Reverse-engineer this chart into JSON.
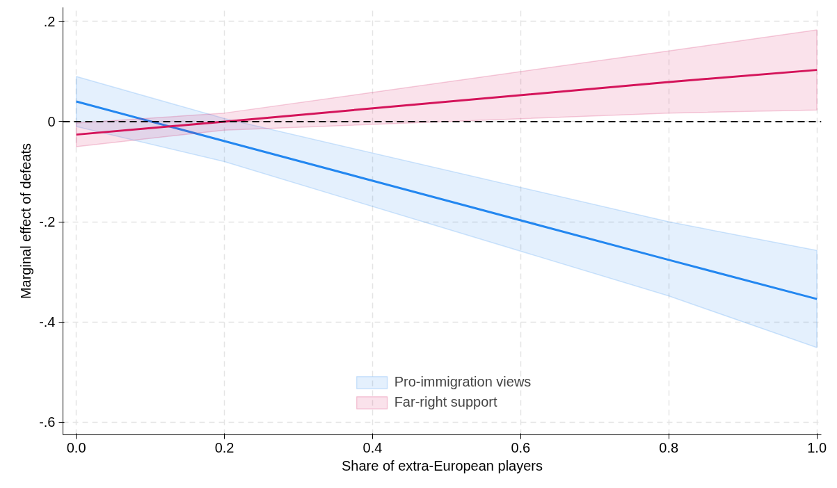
{
  "chart_data": {
    "type": "line",
    "xlabel": "Share of extra-European players",
    "ylabel": "Marginal effect of defeats",
    "x": [
      0,
      0.2,
      0.8,
      1.0
    ],
    "series": [
      {
        "name": "Pro-immigration views",
        "color": "#2387f0",
        "values": [
          0.04,
          -0.039,
          -0.276,
          -0.354
        ],
        "lower": [
          -0.01,
          -0.08,
          -0.348,
          -0.451
        ],
        "upper": [
          0.09,
          0.006,
          -0.2,
          -0.257
        ]
      },
      {
        "name": "Far-right support",
        "color": "#d4145a",
        "values": [
          -0.026,
          0.0,
          0.079,
          0.103
        ],
        "lower": [
          -0.05,
          -0.017,
          0.017,
          0.023
        ],
        "upper": [
          -0.003,
          0.017,
          0.141,
          0.183
        ]
      }
    ],
    "xlim": [
      -0.018,
      1.006
    ],
    "ylim": [
      -0.625,
      0.228
    ],
    "xticks": [
      {
        "value": 0,
        "label": "0.0"
      },
      {
        "value": 0.2,
        "label": "0.2"
      },
      {
        "value": 0.4,
        "label": "0.4"
      },
      {
        "value": 0.6,
        "label": "0.6"
      },
      {
        "value": 0.8,
        "label": "0.8"
      },
      {
        "value": 1.0,
        "label": "1.0"
      }
    ],
    "yticks": [
      {
        "value": 0.2,
        "label": ".2"
      },
      0,
      {
        "value": -0.2,
        "label": "-.2"
      },
      {
        "value": -0.4,
        "label": "-.4"
      },
      {
        "value": -0.6,
        "label": "-.6"
      }
    ],
    "ref_lines": [
      {
        "axis": "y",
        "value": 0,
        "color": "#000000",
        "line_style": "dashed"
      }
    ],
    "grid": true,
    "legend": "bottom",
    "line_style": "solid",
    "marker": "none"
  }
}
